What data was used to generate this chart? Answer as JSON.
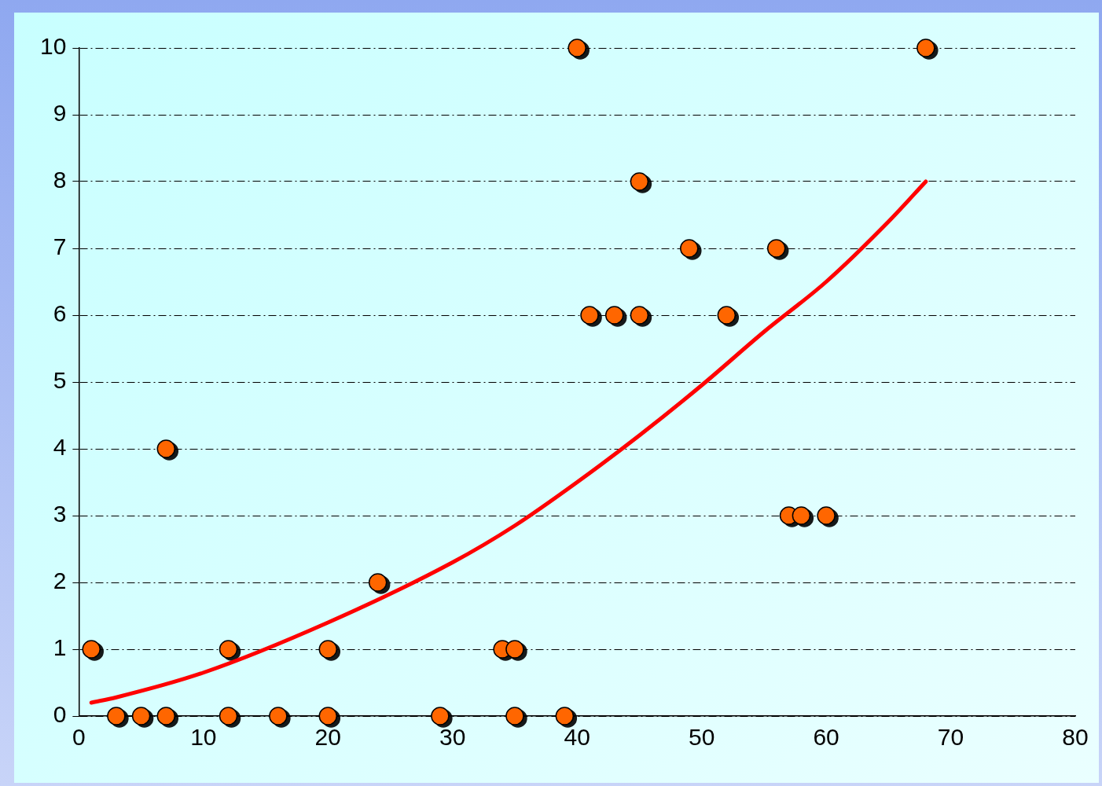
{
  "chart_data": {
    "type": "scatter",
    "xlim": [
      0,
      80
    ],
    "xticks": [
      0,
      10,
      20,
      30,
      40,
      50,
      60,
      70,
      80
    ],
    "ylim": [
      0,
      10
    ],
    "yticks": [
      0,
      1,
      2,
      3,
      4,
      5,
      6,
      7,
      8,
      9,
      10
    ],
    "grid": "y",
    "legend": false,
    "marker": "circle",
    "series": [
      {
        "color": "#ff6600",
        "x": [
          1,
          3,
          5,
          7,
          7,
          12,
          12,
          16,
          20,
          20,
          24,
          29,
          34,
          35,
          35,
          39,
          40,
          41,
          43,
          45,
          45,
          49,
          52,
          56,
          57,
          58,
          60,
          68
        ],
        "values": [
          1,
          0,
          0,
          4,
          0,
          1,
          0,
          0,
          1,
          0,
          2,
          0,
          1,
          1,
          0,
          0,
          10,
          6,
          6,
          8,
          6,
          7,
          6,
          7,
          3,
          3,
          3,
          10
        ]
      },
      {
        "type": "line",
        "color": "#ff0000",
        "marker": "none",
        "x": [
          1,
          3,
          10,
          20,
          30,
          35,
          40,
          45,
          50,
          55,
          60,
          65,
          68
        ],
        "values": [
          0.2,
          0.28,
          0.65,
          1.4,
          2.3,
          2.85,
          3.5,
          4.2,
          4.95,
          5.75,
          6.5,
          7.4,
          8.0
        ]
      }
    ]
  }
}
